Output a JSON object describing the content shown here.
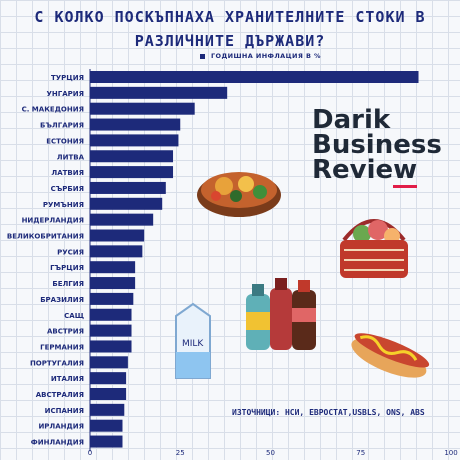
{
  "chart_data": {
    "type": "bar",
    "orientation": "horizontal",
    "title_line1": "С КОЛКО ПОСКЪПНАХА ХРАНИТЕЛНИТЕ СТОКИ В",
    "title_line2": "РАЗЛИЧНИТЕ ДЪРЖАВИ?",
    "legend": "ГОДИШНА ИНФЛАЦИЯ В %",
    "categories": [
      "ТУРЦИЯ",
      "УНГАРИЯ",
      "С. МАКЕДОНИЯ",
      "БЪЛГАРИЯ",
      "ЕСТОНИЯ",
      "ЛИТВА",
      "ЛАТВИЯ",
      "СЪРБИЯ",
      "РУМЪНИЯ",
      "НИДЕРЛАНДИЯ",
      "ВЕЛИКОБРИТАНИЯ",
      "РУСИЯ",
      "ГЪРЦИЯ",
      "БЕЛГИЯ",
      "БРАЗИЛИЯ",
      "САЩ",
      "АВСТРИЯ",
      "ГЕРМАНИЯ",
      "ПОРТУГАЛИЯ",
      "ИТАЛИЯ",
      "АВСТРАЛИЯ",
      "ИСПАНИЯ",
      "ИРЛАНДИЯ",
      "ФИНЛАНДИЯ"
    ],
    "values": [
      91,
      38,
      29,
      25,
      24.5,
      23,
      23,
      21,
      20,
      17.5,
      15,
      14.5,
      12.5,
      12.5,
      12,
      11.5,
      11.5,
      11.5,
      10.5,
      10,
      10,
      9.5,
      9,
      9
    ],
    "xlim": [
      0,
      100
    ],
    "xticks": [
      0,
      25,
      50,
      75,
      100
    ],
    "bar_color": "#1d2a7a"
  },
  "brand": {
    "line1": "Darik",
    "line2": "Business",
    "line3_main": "Revie",
    "line3_accent": "w"
  },
  "sources": "ИЗТОЧНИЦИ: НСИ, ЕВРОСТАТ,USBLS, ONS, ABS"
}
